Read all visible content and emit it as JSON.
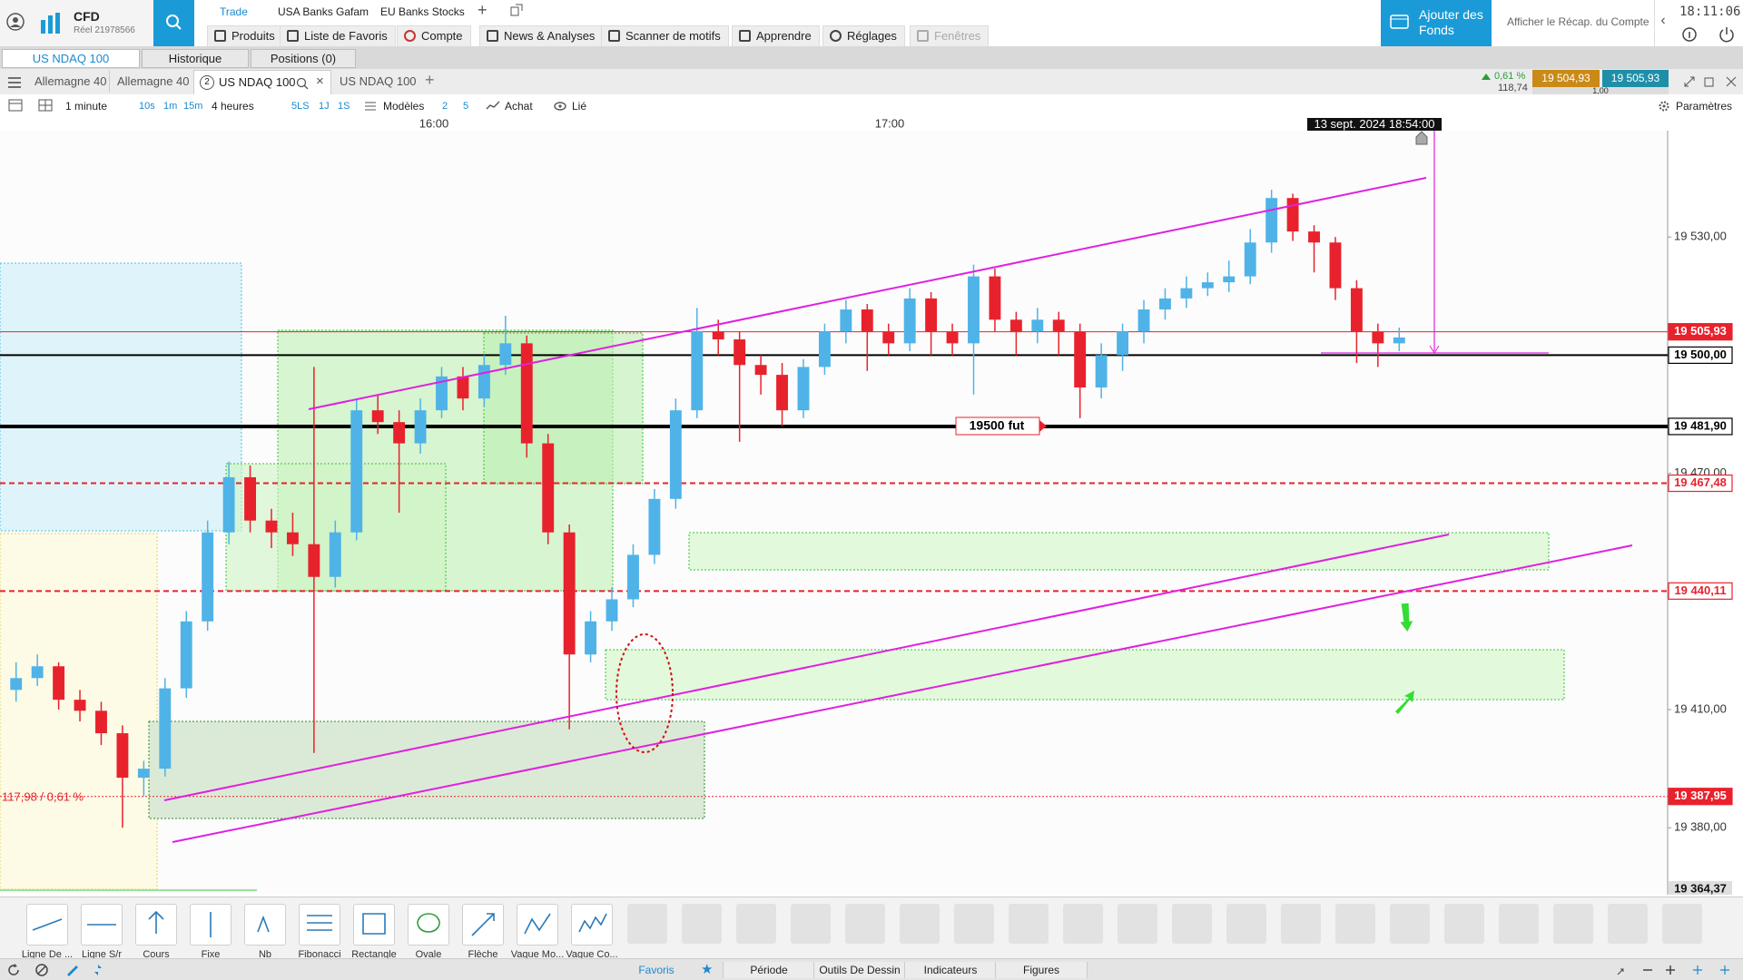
{
  "account": {
    "product": "CFD",
    "number": "Réel 21978566"
  },
  "top_tabs": [
    "Trade",
    "USA Banks Gafam",
    "EU Banks Stocks"
  ],
  "menu": [
    "Produits",
    "Liste de Favoris",
    "Compte",
    "News & Analyses",
    "Scanner de motifs",
    "Apprendre",
    "Réglages",
    "Fenêtres"
  ],
  "funds_button": "Ajouter des Fonds",
  "account_summary": "Afficher le Récap. du Compte",
  "clock": "18:11:06",
  "panel_tabs": [
    "US NDAQ 100",
    "Historique",
    "Positions (0)"
  ],
  "chart_tabs": [
    "Allemagne 40",
    "Allemagne 40",
    "US NDAQ 100",
    "US NDAQ 100"
  ],
  "active_tab_number": "2",
  "quote": {
    "change": "0,61 %",
    "points": "118,74",
    "sell": "19 504,93",
    "buy": "19 505,93",
    "spread": "1,00"
  },
  "toolbar": {
    "interval": "1 minute",
    "quick_intervals": [
      "10s",
      "1m",
      "15m"
    ],
    "range": "4 heures",
    "quick_ranges": [
      "5LS",
      "1J",
      "1S"
    ],
    "templates": "Modèles",
    "layouts": [
      "2",
      "5"
    ],
    "mode": "Achat",
    "link": "Lié",
    "settings": "Paramètres"
  },
  "chart_data": {
    "type": "candlestick",
    "time_labels": [
      "16:00",
      "17:00"
    ],
    "crosshair_time": "13 sept. 2024 18:54:00",
    "up_color": "#4fb3e8",
    "down_color": "#e8222c",
    "ylim": [
      19363,
      19557
    ],
    "yticks": [
      {
        "value": 19530,
        "label": "19 530,00"
      },
      {
        "value": 19470,
        "label": "19 470,00"
      },
      {
        "value": 19410,
        "label": "19 410,00"
      },
      {
        "value": 19380,
        "label": "19 380,00"
      }
    ],
    "levels": [
      {
        "value": 19505.93,
        "label": "19 505,93",
        "color": "#e8222c",
        "style": "solid",
        "width": 1,
        "label_style": "filled"
      },
      {
        "value": 19500,
        "label": "19 500,00",
        "color": "#000000",
        "style": "solid",
        "width": 2,
        "label_style": "outlined"
      },
      {
        "value": 19481.9,
        "label": "19 481,90",
        "color": "#000000",
        "style": "solid",
        "width": 4,
        "label_style": "outlined"
      },
      {
        "value": 19467.48,
        "label": "19 467,48",
        "color": "#e8222c",
        "style": "dashed",
        "width": 2,
        "label_style": "outlined"
      },
      {
        "value": 19440.11,
        "label": "19 440,11",
        "color": "#e8222c",
        "style": "dashed",
        "width": 2,
        "label_style": "outlined"
      },
      {
        "value": 19387.95,
        "label": "19 387,95",
        "color": "#e8222c",
        "style": "dotted",
        "width": 1,
        "label_style": "filled"
      }
    ],
    "bottom_price": {
      "value": 19364.37,
      "label": "19 364,37"
    },
    "annotations": [
      "19500 fut",
      "117,98 / 0,61 %"
    ],
    "ohlc": [
      [
        19415,
        19422,
        19412,
        19418
      ],
      [
        19418,
        19424,
        19416,
        19421
      ],
      [
        19421,
        19422,
        19410,
        19412.5
      ],
      [
        19412.5,
        19415,
        19407,
        19409.7
      ],
      [
        19409.7,
        19412,
        19401,
        19404
      ],
      [
        19404,
        19406,
        19380,
        19392.7
      ],
      [
        19392.7,
        19397,
        19388,
        19395
      ],
      [
        19395,
        19418,
        19393,
        19415.4
      ],
      [
        19415.4,
        19435,
        19413,
        19432.4
      ],
      [
        19432.4,
        19458,
        19430,
        19455
      ],
      [
        19455,
        19473,
        19452,
        19469
      ],
      [
        19469,
        19472,
        19455,
        19458
      ],
      [
        19458,
        19461,
        19451,
        19455
      ],
      [
        19455,
        19460,
        19449,
        19452
      ],
      [
        19452,
        19497,
        19399,
        19443.7
      ],
      [
        19443.7,
        19458,
        19441,
        19455
      ],
      [
        19455,
        19489,
        19453,
        19486
      ],
      [
        19486,
        19490,
        19480,
        19483
      ],
      [
        19483,
        19486,
        19460,
        19477.6
      ],
      [
        19477.6,
        19489,
        19475,
        19486
      ],
      [
        19486,
        19497,
        19484,
        19494.6
      ],
      [
        19494.6,
        19497,
        19486,
        19489
      ],
      [
        19489,
        19500,
        19487,
        19497.5
      ],
      [
        19497.5,
        19510,
        19495,
        19503
      ],
      [
        19503,
        19505,
        19474,
        19477.6
      ],
      [
        19477.6,
        19480,
        19452,
        19455
      ],
      [
        19455,
        19457,
        19405,
        19424
      ],
      [
        19424,
        19435,
        19422,
        19432.4
      ],
      [
        19432.4,
        19441,
        19430,
        19438
      ],
      [
        19438,
        19452,
        19436,
        19449.3
      ],
      [
        19449.3,
        19466,
        19447,
        19463.5
      ],
      [
        19463.5,
        19489,
        19461,
        19486
      ],
      [
        19486,
        19512,
        19484,
        19506
      ],
      [
        19506,
        19509,
        19500,
        19504
      ],
      [
        19504,
        19506,
        19478,
        19497.5
      ],
      [
        19497.5,
        19500,
        19490,
        19495
      ],
      [
        19495,
        19498,
        19482,
        19486
      ],
      [
        19486,
        19499,
        19484,
        19497
      ],
      [
        19497,
        19508,
        19495,
        19506
      ],
      [
        19506,
        19514,
        19503,
        19511.6
      ],
      [
        19511.6,
        19513,
        19496,
        19506
      ],
      [
        19506,
        19508,
        19500,
        19503
      ],
      [
        19503,
        19517,
        19501,
        19514.4
      ],
      [
        19514.4,
        19516,
        19500,
        19506
      ],
      [
        19506,
        19508,
        19500,
        19503
      ],
      [
        19503,
        19523,
        19490,
        19520
      ],
      [
        19520,
        19522,
        19506,
        19509
      ],
      [
        19509,
        19511,
        19500,
        19506
      ],
      [
        19506,
        19512,
        19503,
        19509
      ],
      [
        19509,
        19511,
        19500,
        19506
      ],
      [
        19506,
        19508,
        19484,
        19491.8
      ],
      [
        19491.8,
        19503,
        19489,
        19500
      ],
      [
        19500,
        19508,
        19496,
        19506
      ],
      [
        19506,
        19514,
        19503,
        19511.6
      ],
      [
        19511.6,
        19517,
        19509,
        19514.4
      ],
      [
        19514.4,
        19520,
        19512,
        19517
      ],
      [
        19517,
        19521,
        19515,
        19518.5
      ],
      [
        19518.5,
        19524,
        19516,
        19520
      ],
      [
        19520,
        19532,
        19518,
        19528.6
      ],
      [
        19528.6,
        19542,
        19526,
        19539.9
      ],
      [
        19539.9,
        19541,
        19529,
        19531.4
      ],
      [
        19531.4,
        19533,
        19521,
        19528.6
      ],
      [
        19528.6,
        19530,
        19514,
        19517
      ],
      [
        19517,
        19519,
        19498,
        19506
      ],
      [
        19506,
        19508,
        19497,
        19503
      ],
      [
        19503,
        19507,
        19501,
        19504.5
      ]
    ]
  },
  "drawing_tools": [
    "Ligne De ...",
    "Ligne S/r",
    "Cours",
    "Fixe",
    "Nb",
    "Fibonacci",
    "Rectangle",
    "Ovale",
    "Flèche",
    "Vague Mo...",
    "Vague Co..."
  ],
  "bottom_tabs": [
    "Favoris",
    "Période",
    "Outils De Dessin",
    "Indicateurs",
    "Figures"
  ]
}
